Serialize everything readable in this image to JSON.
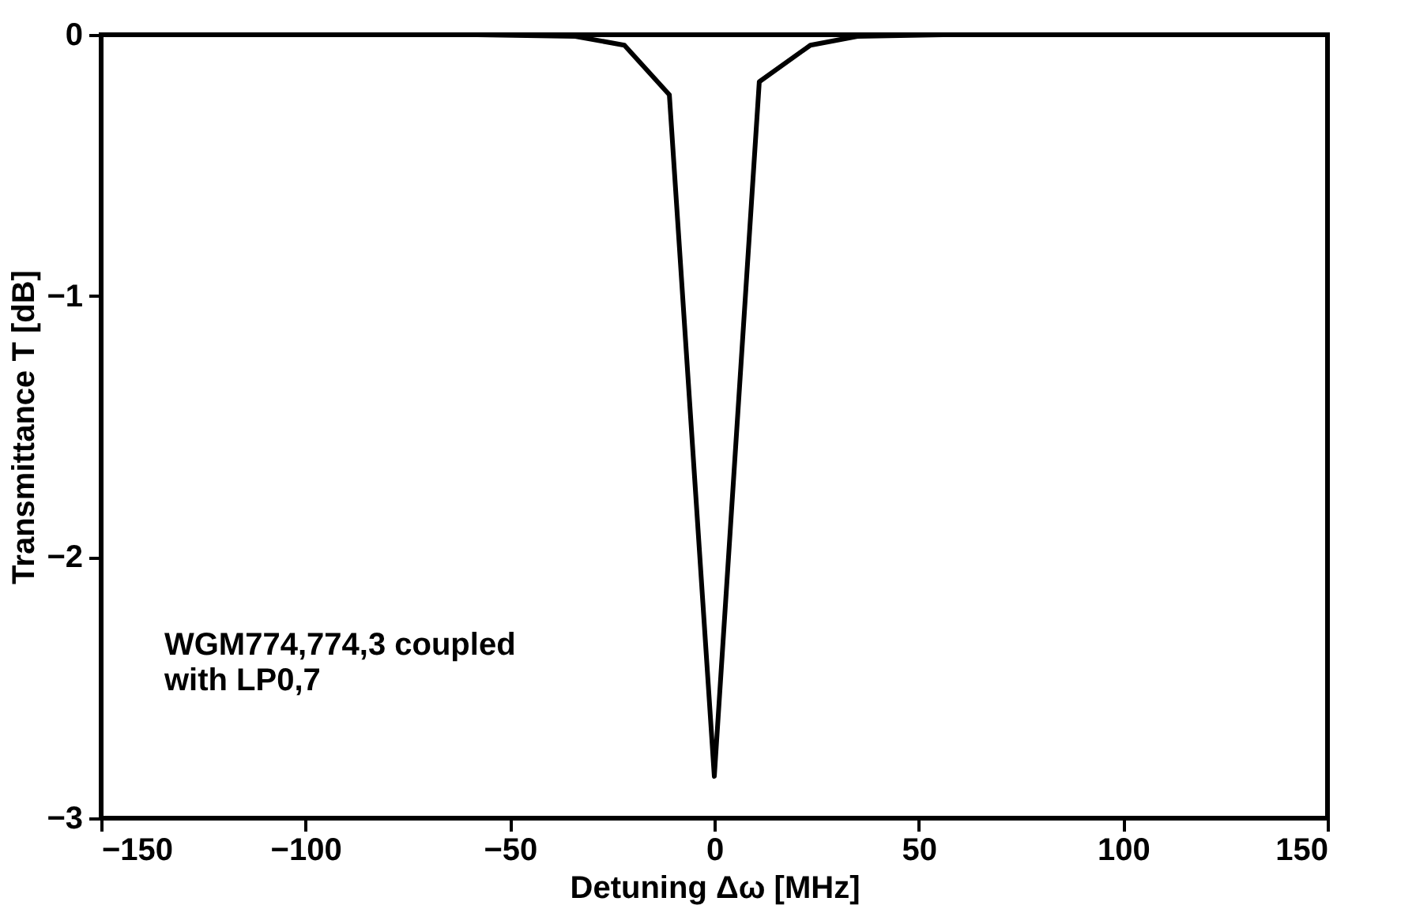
{
  "chart_data": {
    "type": "line",
    "xlabel": "Detuning Δω [MHz]",
    "ylabel": "Transmittance T [dB]",
    "x": [
      -150,
      -58,
      -34,
      -22,
      -11,
      0,
      11,
      23.5,
      35,
      56,
      150
    ],
    "series": [
      {
        "color": "#000000",
        "values": [
          0,
          0,
          -0.006,
          -0.04,
          -0.23,
          -2.84,
          -0.18,
          -0.04,
          -0.006,
          0,
          0
        ]
      }
    ],
    "xlim": [
      -150,
      150
    ],
    "xticks": [
      -150,
      -100,
      -50,
      0,
      50,
      100,
      150
    ],
    "ylim": [
      -3,
      0
    ],
    "yticks": [
      -3,
      -2,
      -1,
      0
    ],
    "annotations": [
      "WGM774,774,3 coupled",
      "with LP0,7"
    ],
    "grid": false,
    "legend": false,
    "marker": "none",
    "line_style": "solid"
  }
}
